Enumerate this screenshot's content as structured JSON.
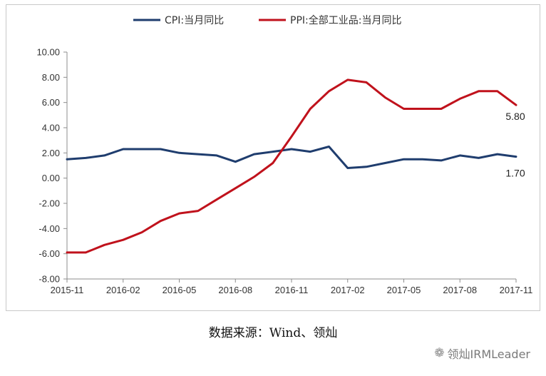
{
  "chart_data": {
    "type": "line",
    "categories": [
      "2015-11",
      "2015-12",
      "2016-01",
      "2016-02",
      "2016-03",
      "2016-04",
      "2016-05",
      "2016-06",
      "2016-07",
      "2016-08",
      "2016-09",
      "2016-10",
      "2016-11",
      "2016-12",
      "2017-01",
      "2017-02",
      "2017-03",
      "2017-04",
      "2017-05",
      "2017-06",
      "2017-07",
      "2017-08",
      "2017-09",
      "2017-10",
      "2017-11"
    ],
    "tick_labels": [
      "2015-11",
      "2016-02",
      "2016-05",
      "2016-08",
      "2016-11",
      "2017-02",
      "2017-05",
      "2017-08",
      "2017-11"
    ],
    "tick_indices": [
      0,
      3,
      6,
      9,
      12,
      15,
      18,
      21,
      24
    ],
    "y_ticks": [
      "10.00",
      "8.00",
      "6.00",
      "4.00",
      "2.00",
      "0.00",
      "-2.00",
      "-4.00",
      "-6.00",
      "-8.00"
    ],
    "ylim": [
      -8,
      10
    ],
    "grid": false,
    "legend_position": "top",
    "series": [
      {
        "name": "CPI:当月同比",
        "color": "#1f3d6e",
        "values": [
          1.5,
          1.6,
          1.8,
          2.3,
          2.3,
          2.3,
          2.0,
          1.9,
          1.8,
          1.3,
          1.9,
          2.1,
          2.3,
          2.1,
          2.5,
          0.8,
          0.9,
          1.2,
          1.5,
          1.5,
          1.4,
          1.8,
          1.6,
          1.9,
          1.7
        ],
        "end_label": "1.70"
      },
      {
        "name": "PPI:全部工业品:当月同比",
        "color": "#c0121c",
        "values": [
          -5.9,
          -5.9,
          -5.3,
          -4.9,
          -4.3,
          -3.4,
          -2.8,
          -2.6,
          -1.7,
          -0.8,
          0.1,
          1.2,
          3.3,
          5.5,
          6.9,
          7.8,
          7.6,
          6.4,
          5.5,
          5.5,
          5.5,
          6.3,
          6.9,
          6.9,
          5.8
        ],
        "end_label": "5.80"
      }
    ]
  },
  "source_caption": "数据来源：Wind、领灿",
  "watermark": {
    "icon": "wechat-icon",
    "text": "领灿IRMLeader"
  }
}
